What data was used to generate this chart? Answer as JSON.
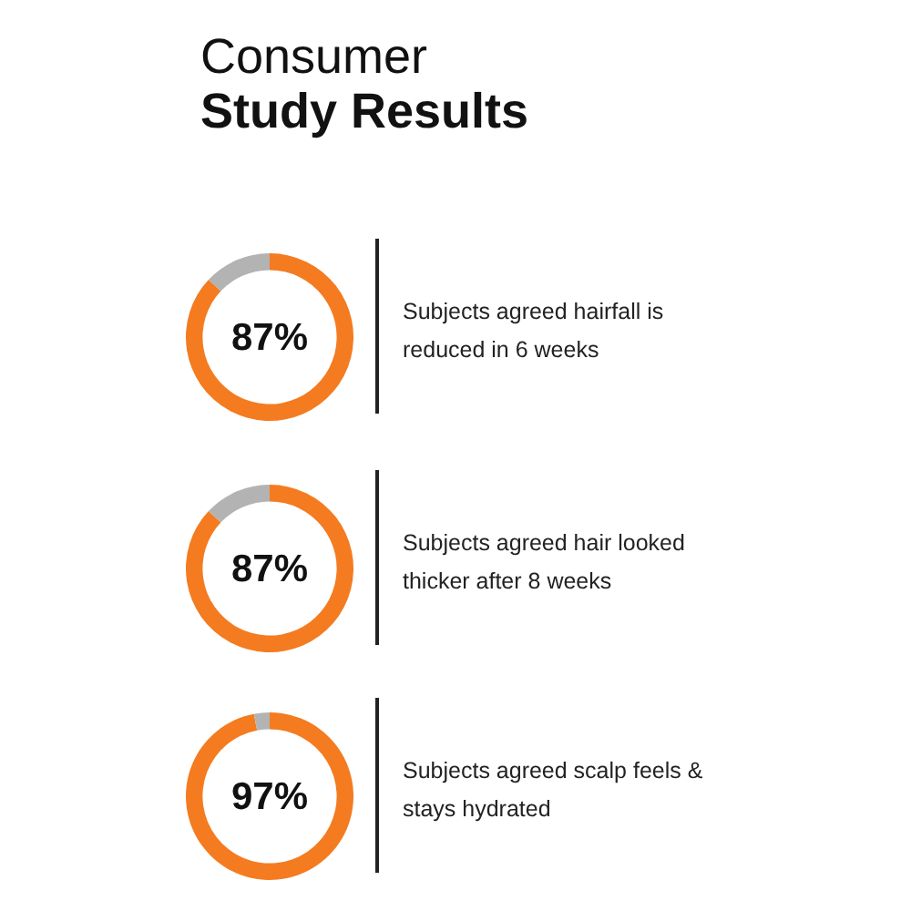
{
  "chart_data": [
    {
      "type": "donut",
      "title": "Consumer",
      "subtitle": "Study Results",
      "categories": [
        null,
        null
      ],
      "values": [
        87,
        13
      ],
      "colors": [
        "#f47b20",
        "#b3b3b3"
      ],
      "value_labels": [
        "87%",
        null
      ],
      "annotations": [
        "Subjects agreed hairfall is reduced in 6 weeks"
      ]
    },
    {
      "type": "donut",
      "categories": [
        null,
        null
      ],
      "values": [
        87,
        13
      ],
      "colors": [
        "#f47b20",
        "#b3b3b3"
      ],
      "value_labels": [
        "87%",
        null
      ],
      "annotations": [
        "Subjects agreed hair looked thicker after 8 weeks"
      ]
    },
    {
      "type": "donut",
      "categories": [
        null,
        null
      ],
      "values": [
        97,
        3
      ],
      "colors": [
        "#f47b20",
        "#b3b3b3"
      ],
      "value_labels": [
        "97%",
        null
      ],
      "annotations": [
        "Subjects agreed scalp feels & stays hydrated"
      ]
    }
  ]
}
